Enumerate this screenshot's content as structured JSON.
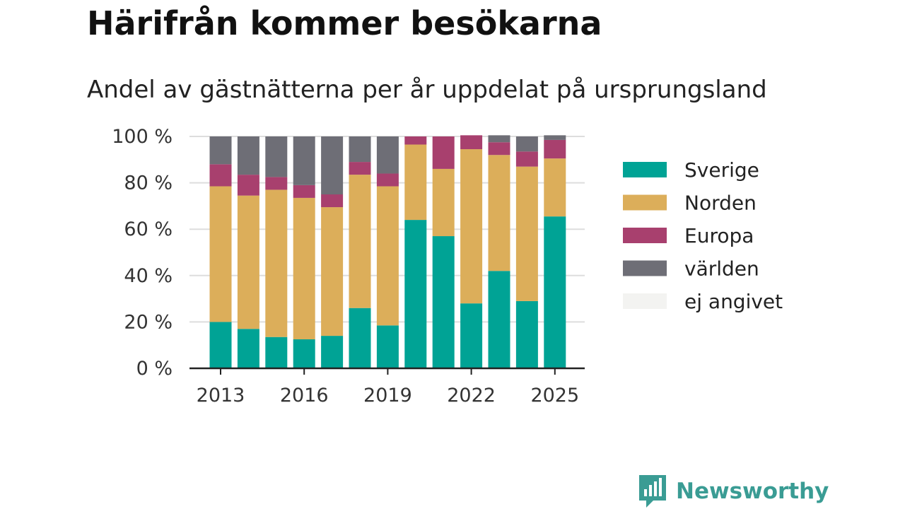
{
  "header": {
    "title": "Härifrån kommer besökarna",
    "subtitle": "Andel av gästnätterna per år uppdelat på ursprungsland"
  },
  "brand": {
    "name": "Newsworthy",
    "icon": "newsworthy-logo-icon",
    "color": "#3a9c94"
  },
  "chart_data": {
    "type": "bar",
    "stacked": true,
    "categories": [
      "2013",
      "2014",
      "2015",
      "2016",
      "2017",
      "2018",
      "2019",
      "2020",
      "2021",
      "2022",
      "2023",
      "2024",
      "2025"
    ],
    "x_tick_labels": [
      "2013",
      "2016",
      "2019",
      "2022",
      "2025"
    ],
    "y_ticks": [
      0,
      20,
      40,
      60,
      80,
      100
    ],
    "y_tick_labels": [
      "0 %",
      "20 %",
      "40 %",
      "60 %",
      "80 %",
      "100 %"
    ],
    "ylim": [
      0,
      100
    ],
    "grid": true,
    "legend_position": "right",
    "series": [
      {
        "name": "Sverige",
        "color": "#00a395",
        "values": [
          20,
          17,
          13.5,
          12.5,
          14,
          26,
          18.5,
          64,
          57,
          28,
          42,
          29,
          65.5
        ]
      },
      {
        "name": "Norden",
        "color": "#dcae5a",
        "values": [
          58.5,
          57.5,
          63.5,
          61,
          55.5,
          57.5,
          60,
          32.5,
          29,
          66.5,
          50,
          58,
          25
        ]
      },
      {
        "name": "Europa",
        "color": "#a8406e",
        "values": [
          9.5,
          9,
          5.5,
          5.5,
          5.5,
          5.5,
          5.5,
          3.5,
          14,
          6,
          5.5,
          6.5,
          8
        ]
      },
      {
        "name": "världen",
        "color": "#6e6e76",
        "values": [
          12,
          16.5,
          17.5,
          21,
          25,
          11,
          16,
          0,
          0,
          0,
          3,
          6.5,
          2
        ]
      },
      {
        "name": "ej angivet",
        "color": "#f3f3f1",
        "values": [
          0,
          0,
          0,
          0,
          0,
          0,
          0,
          0,
          0,
          0,
          0,
          0,
          0
        ]
      }
    ]
  }
}
